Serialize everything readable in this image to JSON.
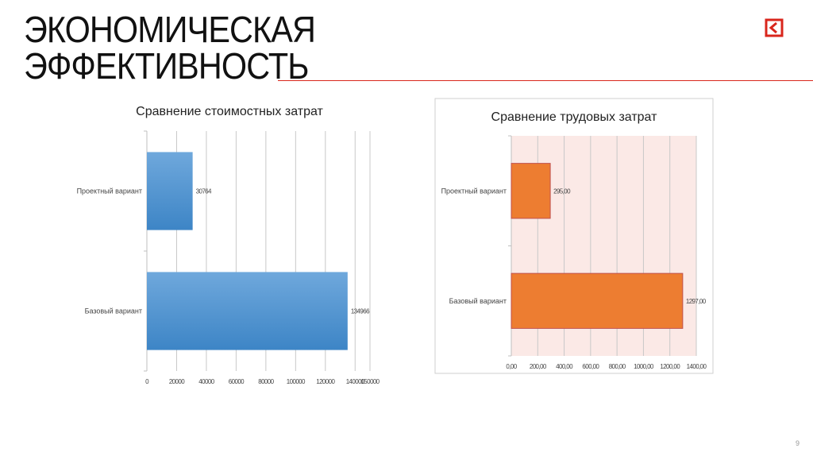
{
  "slide": {
    "title_line1": "ЭКОНОМИЧЕСКАЯ",
    "title_line2": "ЭФФЕКТИВНОСТЬ",
    "page_number": "9",
    "accent_color": "#d9261c",
    "back_icon": "back-arrow-icon"
  },
  "chart_data": [
    {
      "type": "bar",
      "orientation": "horizontal",
      "title": "Сравнение стоимостных  затрат",
      "categories": [
        "Проектный вариант",
        "Базовый вариант"
      ],
      "values": [
        30764,
        134966
      ],
      "value_labels": [
        "30764",
        "134966"
      ],
      "xlim": [
        0,
        150000
      ],
      "xticks": [
        "0",
        "20000",
        "40000",
        "60000",
        "80000",
        "100000",
        "120000",
        "140000",
        "150000"
      ],
      "grid": true,
      "color": "#5b9bd5",
      "plot_background": "#ffffff"
    },
    {
      "type": "bar",
      "orientation": "horizontal",
      "title": "Сравнение трудовых затрат",
      "categories": [
        "Проектный вариант",
        "Базовый вариант"
      ],
      "values": [
        295,
        1297
      ],
      "value_labels": [
        "295,00",
        "1297,00"
      ],
      "xlim": [
        0,
        1400
      ],
      "xticks": [
        "0,00",
        "200,00",
        "400,00",
        "600,00",
        "800,00",
        "1000,00",
        "1200,00",
        "1400,00"
      ],
      "grid": true,
      "color": "#ed7d31",
      "plot_background": "#fbe9e6"
    }
  ]
}
